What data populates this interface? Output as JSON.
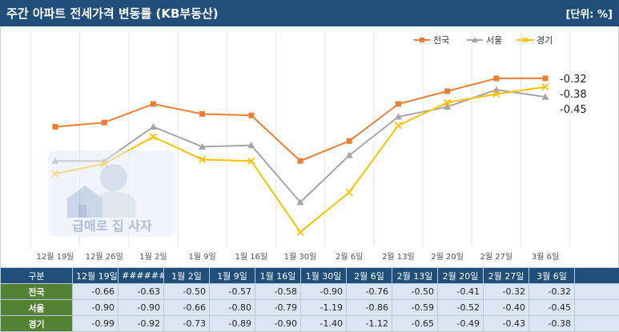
{
  "header": {
    "title": "주간 아파트 전세가격 변동률 (KB부동산)",
    "unit": "[단위: %]"
  },
  "colors": {
    "header_bg": "#1f4e79",
    "row_label_bg": "#548235",
    "cell_bg": "#dce6f2",
    "series": [
      "#ed7d31",
      "#a5a5a5",
      "#ffc000"
    ]
  },
  "watermark": {
    "text": "급매로 집 사자",
    "icon": "house-girl-logo"
  },
  "chart_data": {
    "type": "line",
    "categories": [
      "12월 19일",
      "12월 26일",
      "1월 2일",
      "1월 9일",
      "1월 16일",
      "1월 30일",
      "2월 6일",
      "2월 13일",
      "2월 20일",
      "2월 27일",
      "3월 6일"
    ],
    "table_columns": [
      "12월 19일",
      "######",
      "1월 2일",
      "1월 9일",
      "1월 16일",
      "1월 30일",
      "2월 6일",
      "2월 13일",
      "2월 20일",
      "2월 27일",
      "3월 6일"
    ],
    "table_header_label": "구분",
    "series": [
      {
        "name": "전국",
        "values": [
          -0.66,
          -0.63,
          -0.5,
          -0.57,
          -0.58,
          -0.9,
          -0.76,
          -0.5,
          -0.41,
          -0.32,
          -0.32
        ],
        "color": "#ed7d31",
        "marker": "square"
      },
      {
        "name": "서울",
        "values": [
          -0.9,
          -0.9,
          -0.66,
          -0.8,
          -0.79,
          -1.19,
          -0.86,
          -0.59,
          -0.52,
          -0.4,
          -0.45
        ],
        "color": "#a5a5a5",
        "marker": "triangle"
      },
      {
        "name": "경기",
        "values": [
          -0.99,
          -0.92,
          -0.73,
          -0.89,
          -0.9,
          -1.4,
          -1.12,
          -0.65,
          -0.49,
          -0.43,
          -0.38
        ],
        "color": "#ffc000",
        "marker": "x"
      }
    ],
    "end_labels": [
      "-0.32",
      "-0.38",
      "-0.45"
    ],
    "table_rows": [
      {
        "label": "전국",
        "values": [
          "-0.66",
          "-0.63",
          "-0.50",
          "-0.57",
          "-0.58",
          "-0.90",
          "-0.76",
          "-0.50",
          "-0.41",
          "-0.32",
          "-0.32"
        ]
      },
      {
        "label": "서울",
        "values": [
          "-0.90",
          "-0.90",
          "-0.66",
          "-0.80",
          "-0.79",
          "-1.19",
          "-0.86",
          "-0.59",
          "-0.52",
          "-0.40",
          "-0.45"
        ]
      },
      {
        "label": "경기",
        "values": [
          "-0.99",
          "-0.92",
          "-0.73",
          "-0.89",
          "-0.90",
          "-1.40",
          "-1.12",
          "-0.65",
          "-0.49",
          "-0.43",
          "-0.38"
        ]
      }
    ],
    "ylim": [
      -1.5,
      0
    ],
    "legend_position": "top-right",
    "grid": true
  }
}
